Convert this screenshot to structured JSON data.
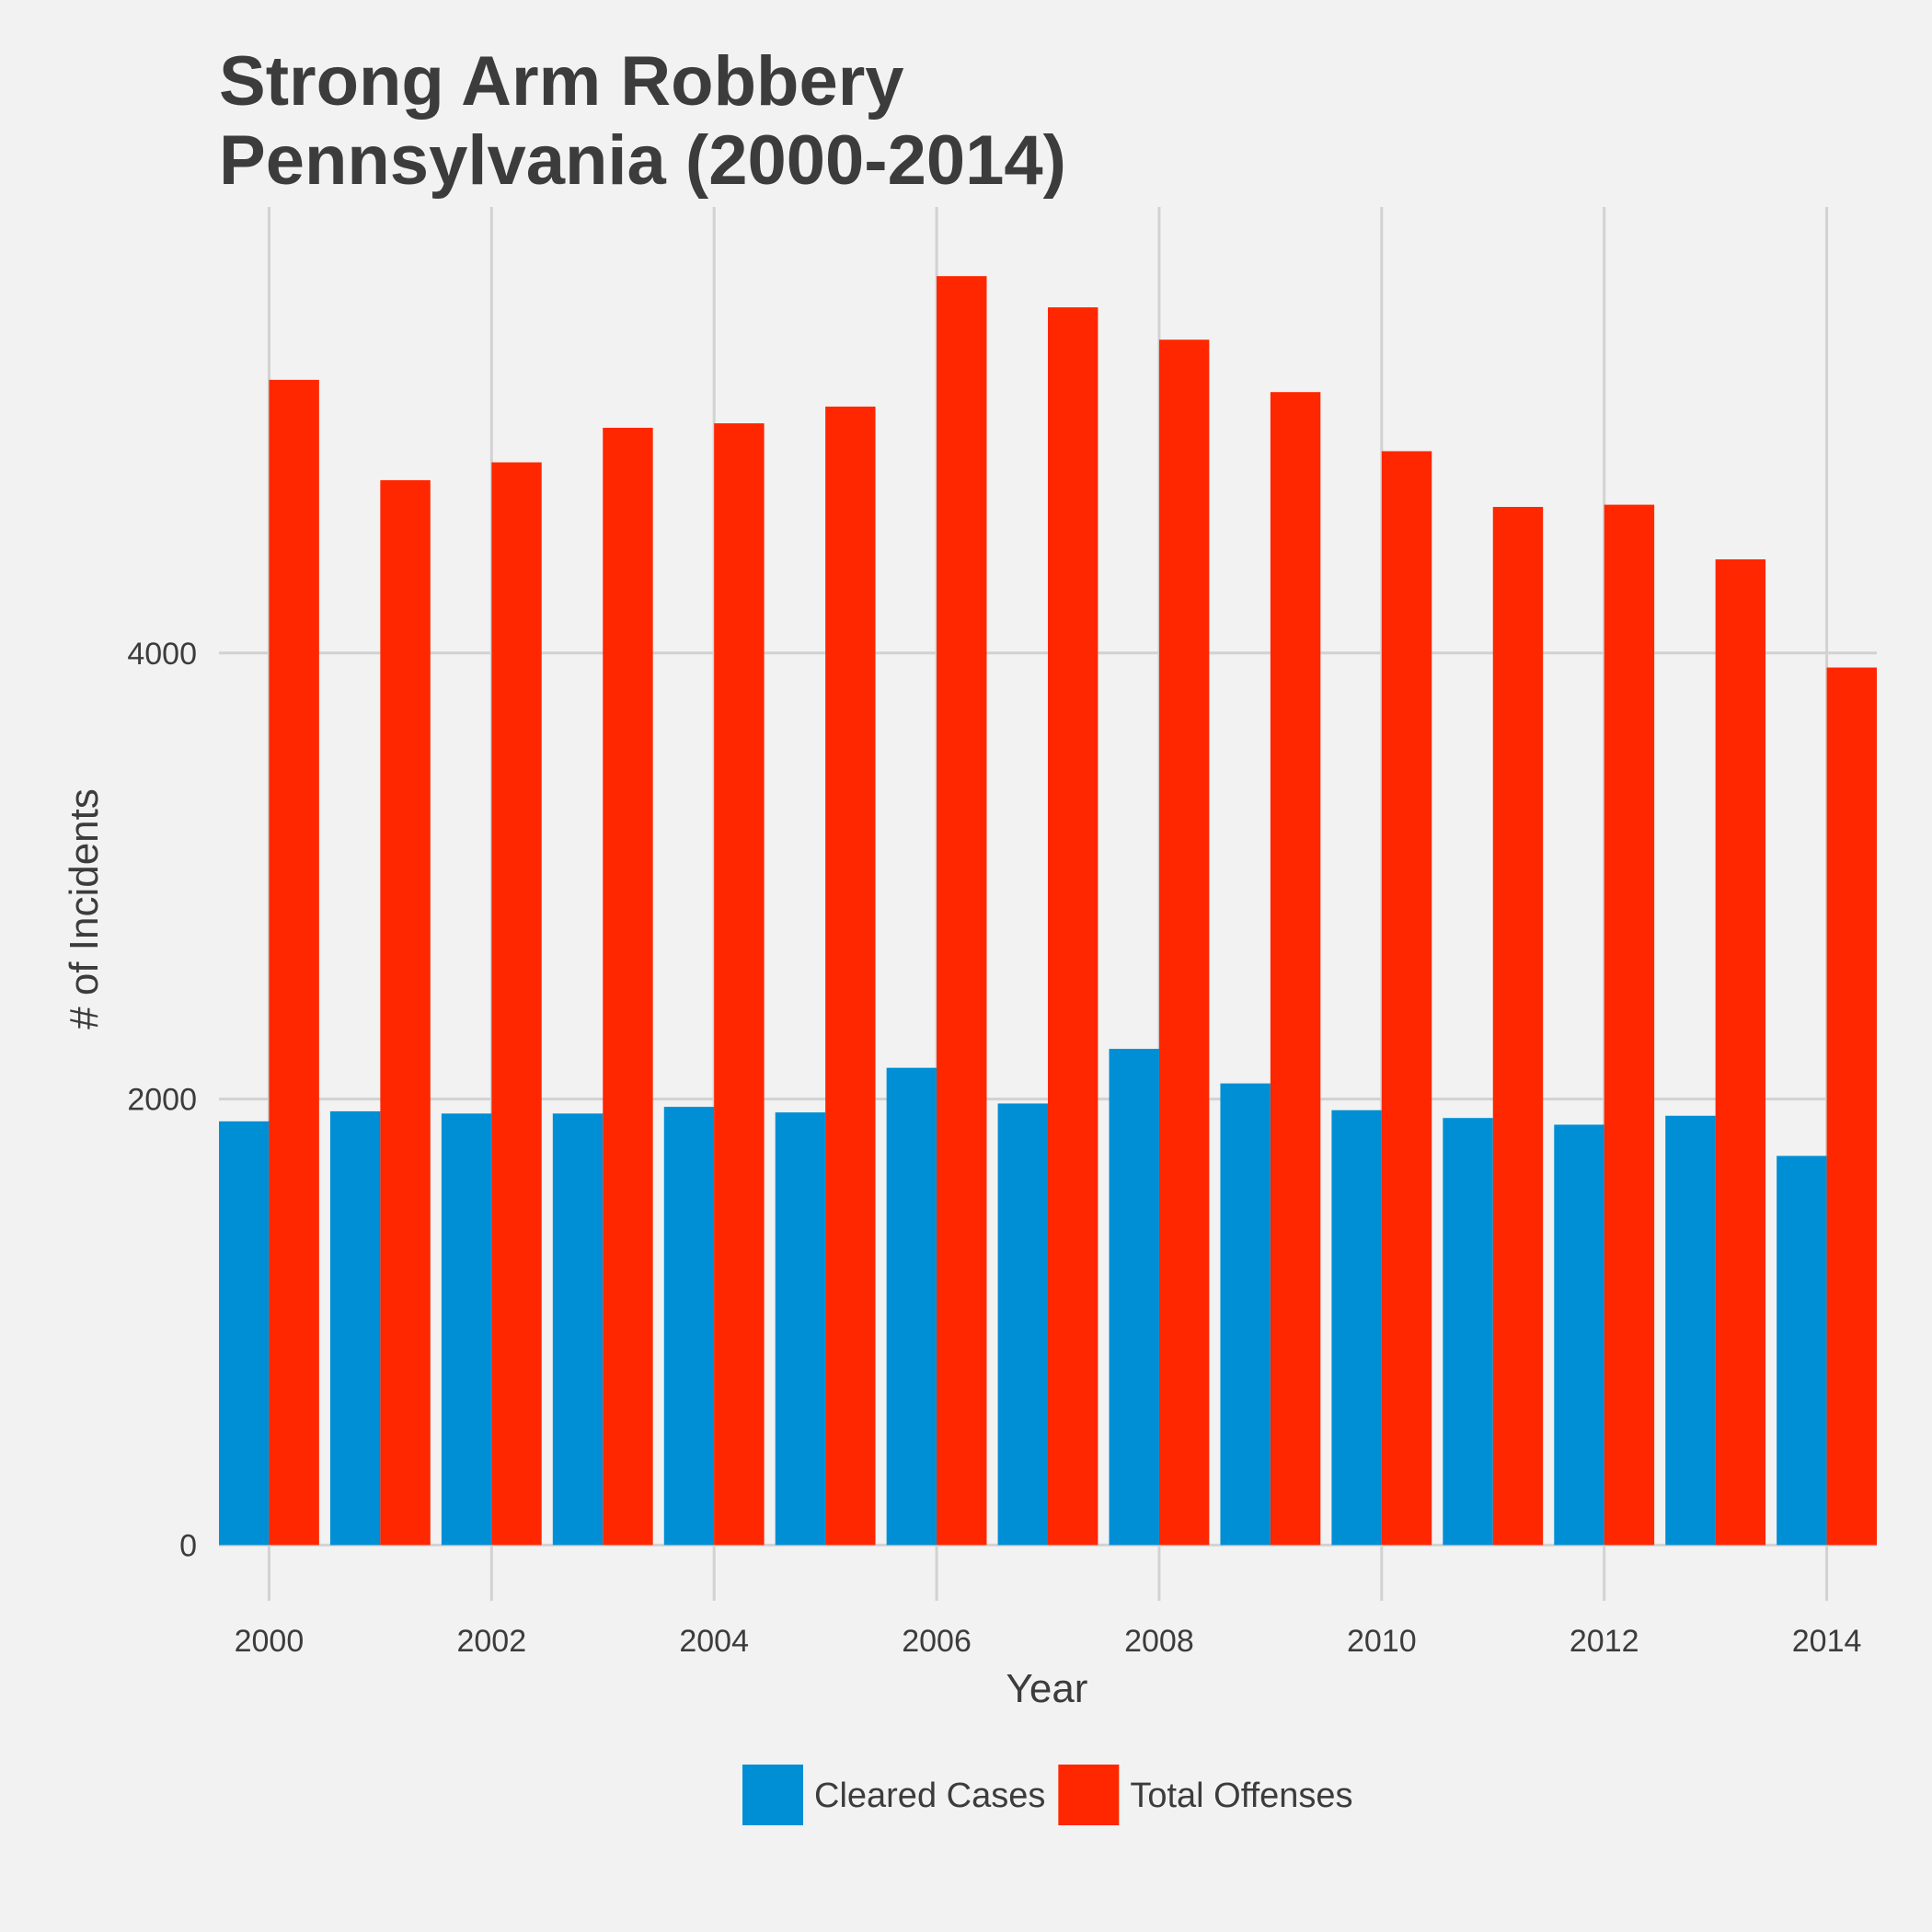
{
  "chart_data": {
    "type": "bar",
    "title_lines": [
      "Strong Arm Robbery",
      "Pennsylvania (2000-2014)"
    ],
    "xlabel": "Year",
    "ylabel": "# of Incidents",
    "x": [
      2000,
      2001,
      2002,
      2003,
      2004,
      2005,
      2006,
      2007,
      2008,
      2009,
      2010,
      2011,
      2012,
      2013,
      2014
    ],
    "x_ticks": [
      "2000",
      "2002",
      "2004",
      "2006",
      "2008",
      "2010",
      "2012",
      "2014"
    ],
    "y_ticks": [
      "0",
      "2000",
      "4000"
    ],
    "ylim": [
      -250,
      6000
    ],
    "xlim": [
      1999.55,
      2014.45
    ],
    "grid": true,
    "legend_position": "bottom",
    "series": [
      {
        "name": "Cleared Cases",
        "color": "#008fd5",
        "values": [
          1900,
          1945,
          1935,
          1935,
          1965,
          1940,
          2140,
          1980,
          2225,
          2070,
          1950,
          1915,
          1885,
          1925,
          1745
        ]
      },
      {
        "name": "Total Offenses",
        "color": "#ff2700",
        "values": [
          5225,
          4775,
          4855,
          5010,
          5030,
          5105,
          5690,
          5550,
          5405,
          5170,
          4905,
          4655,
          4665,
          4420,
          3935
        ]
      }
    ]
  }
}
